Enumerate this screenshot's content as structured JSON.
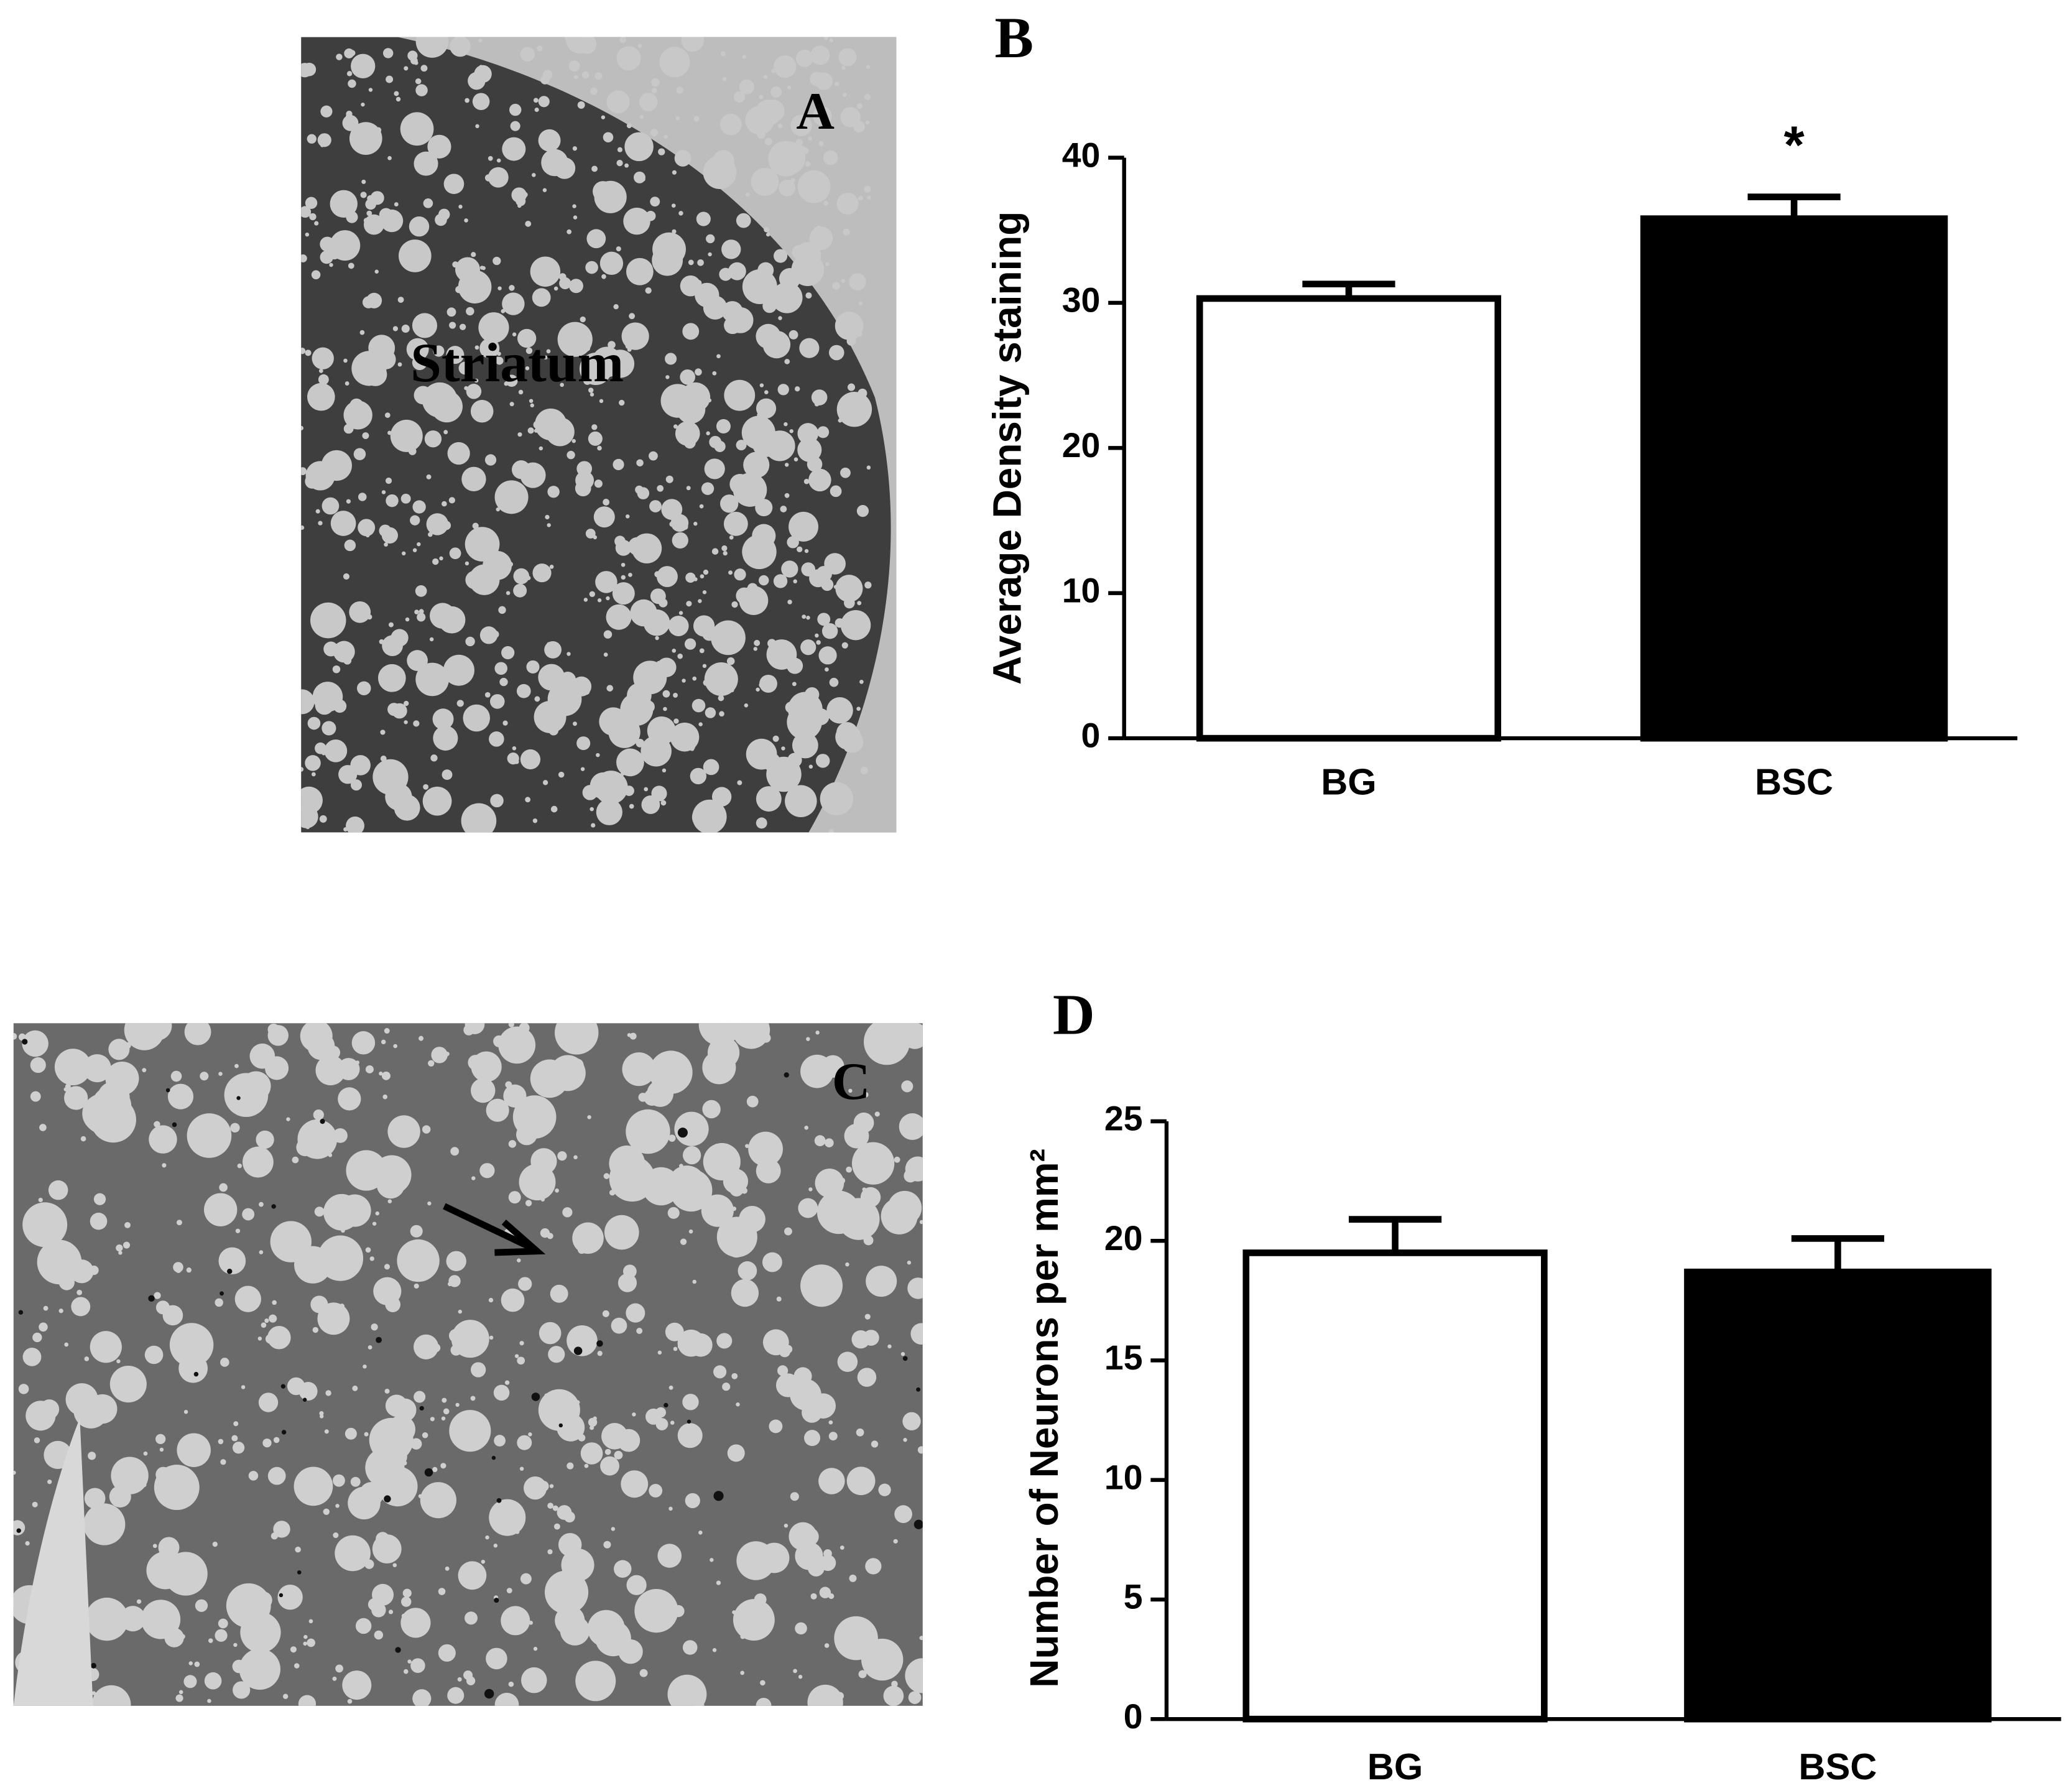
{
  "panels": {
    "a_label": "A",
    "a_region": "Striatum",
    "c_label": "C"
  },
  "chart_data": [
    {
      "type": "bar",
      "panel_label": "B",
      "ylabel": "Average Density staining",
      "categories": [
        "BG",
        "BSC"
      ],
      "values": [
        30.3,
        35.8
      ],
      "errors": [
        1.0,
        1.5
      ],
      "colors": [
        "#ffffff",
        "#000000"
      ],
      "annotations": [
        "",
        "*"
      ],
      "ylim": [
        0,
        40
      ],
      "yticks": [
        0,
        10,
        20,
        30,
        40
      ]
    },
    {
      "type": "bar",
      "panel_label": "D",
      "ylabel": "Number of Neurons per mm²",
      "categories": [
        "BG",
        "BSC"
      ],
      "values": [
        19.5,
        18.7
      ],
      "errors": [
        1.4,
        1.4
      ],
      "colors": [
        "#ffffff",
        "#000000"
      ],
      "ylim": [
        0,
        25
      ],
      "yticks": [
        0,
        5,
        10,
        15,
        20,
        25
      ]
    }
  ]
}
